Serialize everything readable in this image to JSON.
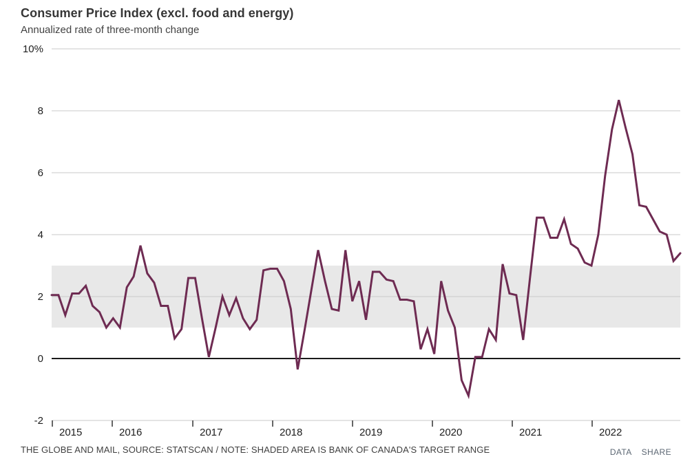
{
  "header": {
    "title": "Consumer Price Index (excl. food and energy)",
    "subtitle": "Annualized rate of three-month change"
  },
  "footer": {
    "source": "THE GLOBE AND MAIL, SOURCE: STATSCAN / NOTE: SHADED AREA IS BANK OF CANADA'S TARGET RANGE",
    "data_label": "DATA",
    "share_label": "SHARE"
  },
  "chart_data": {
    "type": "line",
    "title": "Consumer Price Index (excl. food and energy)",
    "subtitle": "Annualized rate of three-month change",
    "series_name": "CPI excl. food and energy, annualized rate of three-month change (%)",
    "unit": "%",
    "frequency": "monthly",
    "x": [
      "2015-04",
      "2015-05",
      "2015-06",
      "2015-07",
      "2015-08",
      "2015-09",
      "2015-10",
      "2015-11",
      "2015-12",
      "2016-01",
      "2016-02",
      "2016-03",
      "2016-04",
      "2016-05",
      "2016-06",
      "2016-07",
      "2016-08",
      "2016-09",
      "2016-10",
      "2016-11",
      "2016-12",
      "2017-01",
      "2017-02",
      "2017-03",
      "2017-04",
      "2017-05",
      "2017-06",
      "2017-07",
      "2017-08",
      "2017-09",
      "2017-10",
      "2017-11",
      "2017-12",
      "2018-01",
      "2018-02",
      "2018-03",
      "2018-04",
      "2018-05",
      "2018-06",
      "2018-07",
      "2018-08",
      "2018-09",
      "2018-10",
      "2018-11",
      "2018-12",
      "2019-01",
      "2019-02",
      "2019-03",
      "2019-04",
      "2019-05",
      "2019-06",
      "2019-07",
      "2019-08",
      "2019-09",
      "2019-10",
      "2019-11",
      "2019-12",
      "2020-01",
      "2020-02",
      "2020-03",
      "2020-04",
      "2020-05",
      "2020-06",
      "2020-07",
      "2020-08",
      "2020-09",
      "2020-10",
      "2020-11",
      "2020-12",
      "2021-01",
      "2021-02",
      "2021-03",
      "2021-04",
      "2021-05",
      "2021-06",
      "2021-07",
      "2021-08",
      "2021-09",
      "2021-10",
      "2021-11",
      "2021-12",
      "2022-01",
      "2022-02",
      "2022-03",
      "2022-04",
      "2022-05",
      "2022-06",
      "2022-07",
      "2022-08",
      "2022-09",
      "2022-10",
      "2022-11",
      "2022-12"
    ],
    "values": [
      2.05,
      2.05,
      1.4,
      2.1,
      2.1,
      2.35,
      1.7,
      1.5,
      1.0,
      1.3,
      1.0,
      2.3,
      2.65,
      3.65,
      2.75,
      2.45,
      1.7,
      1.7,
      0.65,
      0.95,
      2.6,
      2.6,
      1.3,
      0.05,
      1.0,
      2.0,
      1.4,
      1.95,
      1.3,
      0.95,
      1.25,
      2.85,
      2.9,
      2.9,
      2.5,
      1.6,
      -0.35,
      0.9,
      2.2,
      3.5,
      2.5,
      1.6,
      1.55,
      3.5,
      1.85,
      2.5,
      1.25,
      2.8,
      2.8,
      2.55,
      2.5,
      1.9,
      1.9,
      1.85,
      0.3,
      0.95,
      0.15,
      2.5,
      1.55,
      1.0,
      -0.7,
      -1.2,
      0.05,
      0.05,
      0.95,
      0.6,
      3.05,
      2.1,
      2.05,
      0.6,
      2.6,
      4.55,
      4.55,
      3.9,
      3.9,
      4.5,
      3.7,
      3.55,
      3.1,
      3.0,
      4.0,
      5.9,
      7.4,
      8.35,
      7.45,
      6.6,
      4.95,
      4.9,
      4.5,
      4.1,
      4.0,
      3.15,
      3.4
    ],
    "ylim": [
      -2,
      10
    ],
    "yticks": [
      {
        "value": 10,
        "label": "10%"
      },
      {
        "value": 8,
        "label": "8"
      },
      {
        "value": 6,
        "label": "6"
      },
      {
        "value": 4,
        "label": "4"
      },
      {
        "value": 2,
        "label": "2"
      },
      {
        "value": 0,
        "label": "0"
      },
      {
        "value": -2,
        "label": "-2"
      }
    ],
    "year_labels": [
      "2015",
      "2016",
      "2017",
      "2018",
      "2019",
      "2020",
      "2021",
      "2022"
    ],
    "grid": true,
    "legend": "none",
    "target_band": {
      "from": 1,
      "to": 3,
      "note": "Bank of Canada's target range"
    },
    "colors": {
      "line": "#6e2b52",
      "band": "#e8e8e8",
      "grid": "#cacaca",
      "zero_line": "#1a1a1a",
      "tick": "#333333"
    }
  }
}
